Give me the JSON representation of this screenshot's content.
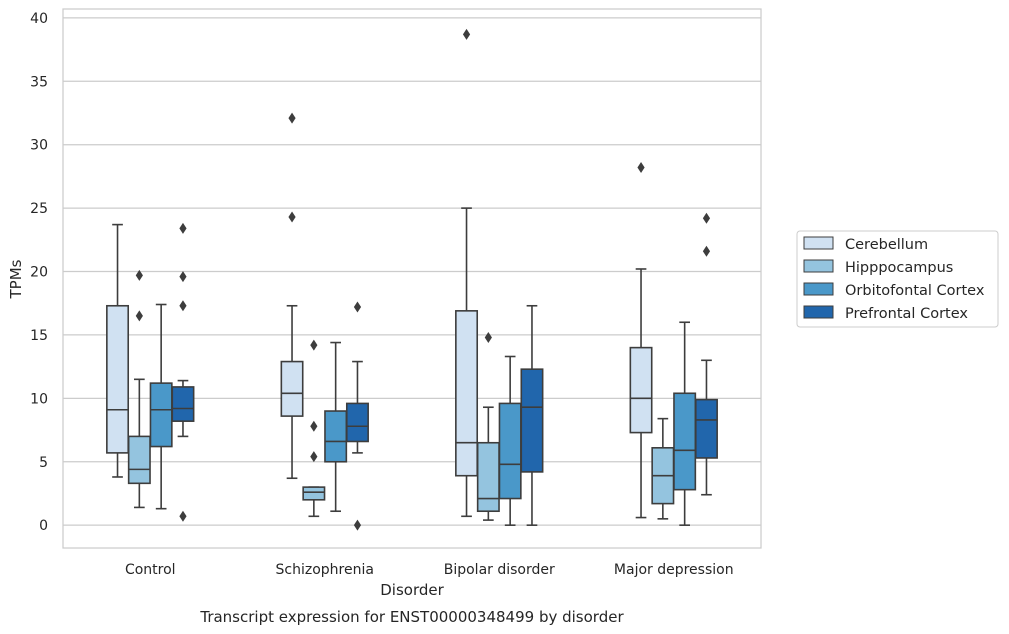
{
  "chart_data": {
    "type": "box",
    "title": "",
    "caption": "Transcript expression for ENST00000348499 by disorder",
    "xlabel": "Disorder",
    "ylabel": "TPMs",
    "ylim": [
      -1.8,
      40.7
    ],
    "yticks": [
      0,
      5,
      10,
      15,
      20,
      25,
      30,
      35,
      40
    ],
    "grid": "horizontal",
    "legend_position": "right",
    "categories": [
      "Control",
      "Schizophrenia",
      "Bipolar disorder",
      "Major depression"
    ],
    "series": [
      {
        "name": "Cerebellum",
        "color": "#d0e1f2",
        "boxes": [
          {
            "whisker_low": 3.8,
            "q1": 5.7,
            "median": 9.1,
            "q3": 17.3,
            "whisker_high": 23.7,
            "outliers": []
          },
          {
            "whisker_low": 3.7,
            "q1": 8.6,
            "median": 10.4,
            "q3": 12.9,
            "whisker_high": 17.3,
            "outliers": [
              32.1,
              24.3
            ]
          },
          {
            "whisker_low": 0.7,
            "q1": 3.9,
            "median": 6.5,
            "q3": 16.9,
            "whisker_high": 25.0,
            "outliers": [
              38.7
            ]
          },
          {
            "whisker_low": 0.6,
            "q1": 7.3,
            "median": 10.0,
            "q3": 14.0,
            "whisker_high": 20.2,
            "outliers": [
              28.2
            ]
          }
        ]
      },
      {
        "name": "Hipppocampus",
        "color": "#94c4df",
        "boxes": [
          {
            "whisker_low": 1.4,
            "q1": 3.3,
            "median": 4.4,
            "q3": 7.0,
            "whisker_high": 11.5,
            "outliers": [
              19.7,
              16.5
            ]
          },
          {
            "whisker_low": 0.7,
            "q1": 2.0,
            "median": 2.6,
            "q3": 3.0,
            "whisker_high": 3.0,
            "outliers": [
              14.2,
              7.8,
              5.4
            ]
          },
          {
            "whisker_low": 0.4,
            "q1": 1.1,
            "median": 2.1,
            "q3": 6.5,
            "whisker_high": 9.3,
            "outliers": [
              14.8
            ]
          },
          {
            "whisker_low": 0.5,
            "q1": 1.7,
            "median": 3.9,
            "q3": 6.1,
            "whisker_high": 8.4,
            "outliers": []
          }
        ]
      },
      {
        "name": "Orbitofontal Cortex",
        "color": "#4a98c9",
        "boxes": [
          {
            "whisker_low": 1.3,
            "q1": 6.2,
            "median": 9.1,
            "q3": 11.2,
            "whisker_high": 17.4,
            "outliers": []
          },
          {
            "whisker_low": 1.1,
            "q1": 5.0,
            "median": 6.6,
            "q3": 9.0,
            "whisker_high": 14.4,
            "outliers": []
          },
          {
            "whisker_low": 0.0,
            "q1": 2.1,
            "median": 4.8,
            "q3": 9.6,
            "whisker_high": 13.3,
            "outliers": []
          },
          {
            "whisker_low": 0.0,
            "q1": 2.8,
            "median": 5.9,
            "q3": 10.4,
            "whisker_high": 16.0,
            "outliers": []
          }
        ]
      },
      {
        "name": "Prefrontal Cortex",
        "color": "#2166ac",
        "boxes": [
          {
            "whisker_low": 7.0,
            "q1": 8.2,
            "median": 9.2,
            "q3": 10.9,
            "whisker_high": 11.4,
            "outliers": [
              23.4,
              19.6,
              17.3,
              0.7
            ]
          },
          {
            "whisker_low": 5.7,
            "q1": 6.6,
            "median": 7.8,
            "q3": 9.6,
            "whisker_high": 12.9,
            "outliers": [
              17.2,
              0.0
            ]
          },
          {
            "whisker_low": 0.0,
            "q1": 4.2,
            "median": 9.3,
            "q3": 12.3,
            "whisker_high": 17.3,
            "outliers": []
          },
          {
            "whisker_low": 2.4,
            "q1": 5.3,
            "median": 8.3,
            "q3": 9.9,
            "whisker_high": 13.0,
            "outliers": [
              24.2,
              21.6
            ]
          }
        ]
      }
    ]
  }
}
